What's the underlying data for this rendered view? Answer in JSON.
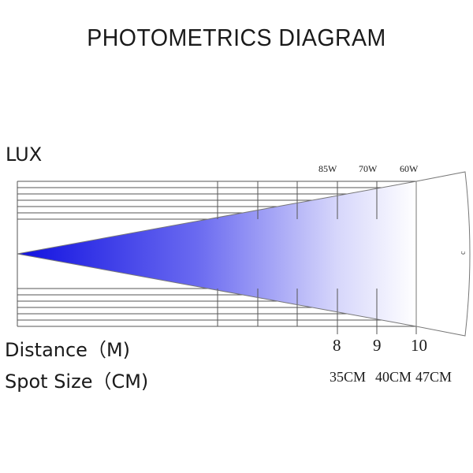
{
  "title": "PHOTOMETRICS DIAGRAM",
  "y_label": "LUX",
  "distance_label": "Distance（M)",
  "spot_label": "Spot Size（CM)",
  "markers": [
    {
      "watt": "85W",
      "distance": "8",
      "spot": "35CM"
    },
    {
      "watt": "70W",
      "distance": "9",
      "spot": "40CM"
    },
    {
      "watt": "60W",
      "distance": "10",
      "spot": "47CM"
    }
  ],
  "colors": {
    "beam_start": "#1010e0",
    "beam_end": "#ffffff",
    "grid": "#555555"
  }
}
